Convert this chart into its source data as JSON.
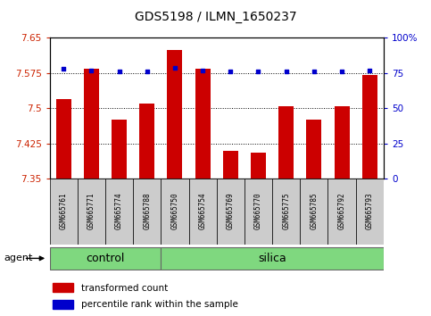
{
  "title": "GDS5198 / ILMN_1650237",
  "samples": [
    "GSM665761",
    "GSM665771",
    "GSM665774",
    "GSM665788",
    "GSM665750",
    "GSM665754",
    "GSM665769",
    "GSM665770",
    "GSM665775",
    "GSM665785",
    "GSM665792",
    "GSM665793"
  ],
  "red_values": [
    7.52,
    7.585,
    7.475,
    7.51,
    7.625,
    7.585,
    7.41,
    7.405,
    7.505,
    7.475,
    7.505,
    7.57
  ],
  "blue_values": [
    78,
    77,
    76,
    76,
    79,
    77,
    76,
    76,
    76,
    76,
    76,
    77
  ],
  "ylim_left": [
    7.35,
    7.65
  ],
  "ylim_right": [
    0,
    100
  ],
  "yticks_left": [
    7.35,
    7.425,
    7.5,
    7.575,
    7.65
  ],
  "yticks_right": [
    0,
    25,
    50,
    75,
    100
  ],
  "control_count": 4,
  "bar_color": "#CC0000",
  "dot_color": "#0000CC",
  "tick_label_color_left": "#CC2200",
  "tick_label_color_right": "#0000CC",
  "bar_width": 0.55,
  "bg_color": "#FFFFFF",
  "plot_bg_color": "#FFFFFF",
  "sample_box_color": "#CCCCCC",
  "group_color": "#7FD87F",
  "legend_items": [
    {
      "color": "#CC0000",
      "label": "transformed count"
    },
    {
      "color": "#0000CC",
      "label": "percentile rank within the sample"
    }
  ]
}
